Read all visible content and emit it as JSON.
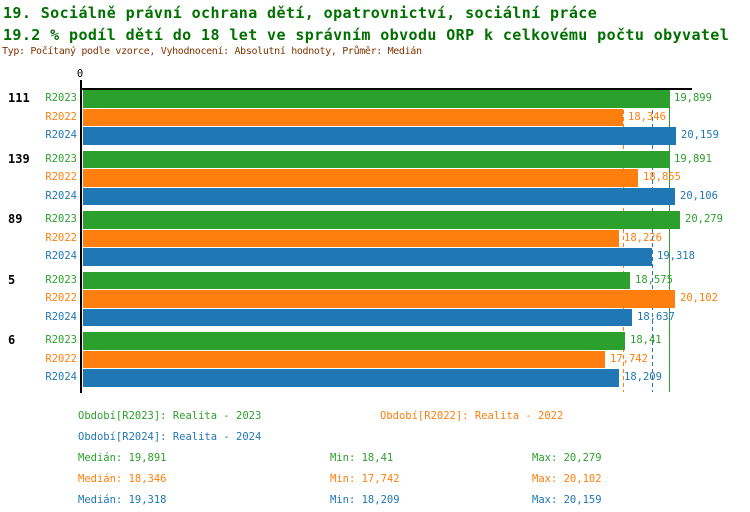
{
  "header": {
    "title": "19. Sociálně právní ochrana dětí, opatrovnictví, sociální práce",
    "subtitle": "19.2 % podíl dětí do 18 let ve správním obvodu ORP k celkovému počtu obyvatel",
    "meta": "Typ: Počítaný podle vzorce, Vyhodnocení: Absolutní hodnoty, Průměr: Medián"
  },
  "colors": {
    "series_green": "#2ca02c",
    "series_orange": "#ff7f0e",
    "series_blue": "#1f77b4",
    "title_green": "#007000",
    "meta_maroon": "#803300",
    "axis_black": "#000000"
  },
  "chart_data": {
    "type": "bar",
    "orientation": "horizontal",
    "origin_label": "0",
    "value_axis": {
      "min": 0,
      "max_plotted": 20.279,
      "unit": "%"
    },
    "grid": "median-lines-only",
    "legend_position": "bottom",
    "series": [
      {
        "name": "R2023",
        "color": "#2ca02c",
        "legend": "Období[R2023]: Realita - 2023",
        "median": 19.891,
        "min": 18.41,
        "max": 20.279,
        "median_text": "Medián: 19,891",
        "min_text": "Min: 18,41",
        "max_text": "Max: 20,279",
        "median_line_style": "solid"
      },
      {
        "name": "R2022",
        "color": "#ff7f0e",
        "legend": "Období[R2022]: Realita - 2022",
        "median": 18.346,
        "min": 17.742,
        "max": 20.102,
        "median_text": "Medián: 18,346",
        "min_text": "Min: 17,742",
        "max_text": "Max: 20,102",
        "median_line_style": "dashed"
      },
      {
        "name": "R2024",
        "color": "#1f77b4",
        "legend": "Období[R2024]: Realita - 2024",
        "median": 19.318,
        "min": 18.209,
        "max": 20.159,
        "median_text": "Medián: 19,318",
        "min_text": "Min: 18,209",
        "max_text": "Max: 20,159",
        "median_line_style": "dashed"
      }
    ],
    "groups": [
      {
        "label": "111",
        "values": [
          19.899,
          18.346,
          20.159
        ],
        "displays": [
          "19,899",
          "18,346",
          "20,159"
        ]
      },
      {
        "label": "139",
        "values": [
          19.891,
          18.855,
          20.106
        ],
        "displays": [
          "19,891",
          "18,855",
          "20,106"
        ]
      },
      {
        "label": "89",
        "values": [
          20.279,
          18.226,
          19.318
        ],
        "displays": [
          "20,279",
          "18,226",
          "19,318"
        ]
      },
      {
        "label": "5",
        "values": [
          18.575,
          20.102,
          18.637
        ],
        "displays": [
          "18,575",
          "20,102",
          "18,637"
        ]
      },
      {
        "label": "6",
        "values": [
          18.41,
          17.742,
          18.209
        ],
        "displays": [
          "18,41",
          "17,742",
          "18,209"
        ]
      }
    ]
  }
}
